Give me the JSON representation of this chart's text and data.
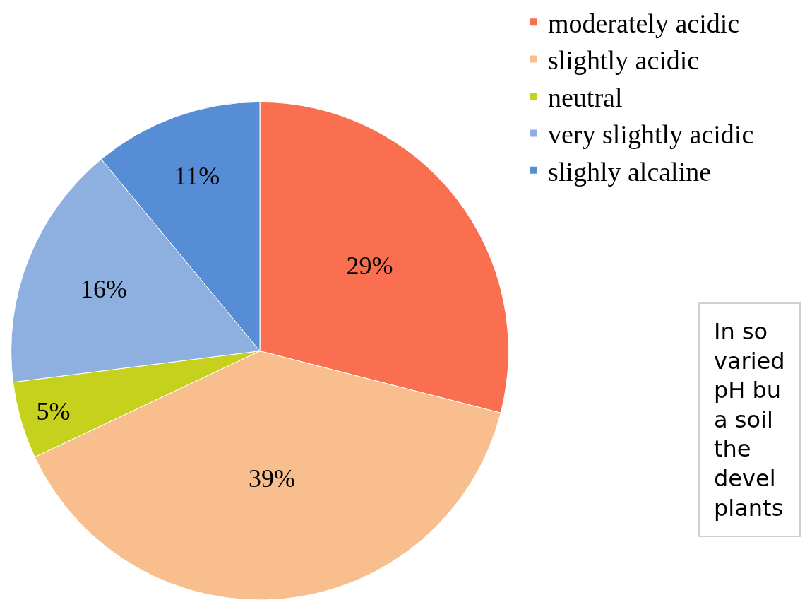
{
  "chart_data": {
    "type": "pie",
    "categories": [
      "moderately acidic",
      "slightly acidic",
      "neutral",
      "very slightly acidic",
      "slighly alcaline"
    ],
    "values": [
      29,
      39,
      5,
      16,
      11
    ],
    "value_labels": [
      "29%",
      "39%",
      "5%",
      "16%",
      "11%"
    ],
    "colors": [
      "#f96f50",
      "#f8be8e",
      "#c5d11d",
      "#8db0e0",
      "#568dd5"
    ],
    "legend": "top right",
    "annotations": [
      "In so\nvaried\npH bu\na soil\nthe\ndevel\nplants"
    ]
  }
}
